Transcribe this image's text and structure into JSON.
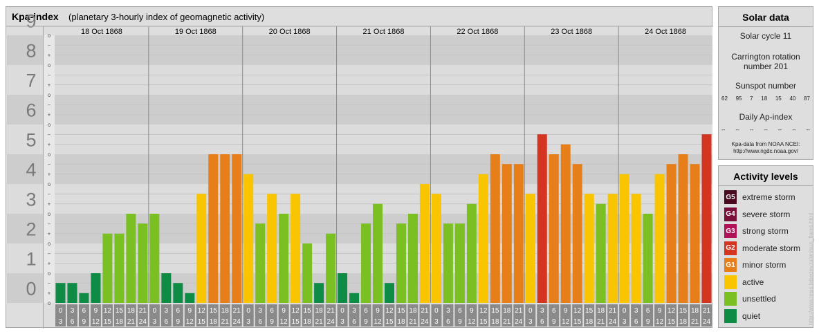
{
  "title": "Kpa-index",
  "subtitle": "(planetary 3-hourly index of geomagnetic activity)",
  "chart_data": {
    "type": "bar",
    "ylim": [
      0,
      9
    ],
    "y_ticks": [
      "0",
      "1",
      "2",
      "3",
      "4",
      "5",
      "6",
      "7",
      "8",
      "9"
    ],
    "minor_marks": [
      "o",
      "+",
      "−"
    ],
    "days": [
      "18 Oct 1868",
      "19 Oct 1868",
      "20 Oct 1868",
      "21 Oct 1868",
      "22 Oct 1868",
      "23 Oct 1868",
      "24 Oct 1868"
    ],
    "intervals": [
      [
        "0",
        "3"
      ],
      [
        "3",
        "6"
      ],
      [
        "6",
        "9"
      ],
      [
        "9",
        "12"
      ],
      [
        "12",
        "15"
      ],
      [
        "15",
        "18"
      ],
      [
        "18",
        "21"
      ],
      [
        "21",
        "24"
      ]
    ],
    "values": [
      [
        0.67,
        0.67,
        0.33,
        1.0,
        2.33,
        2.33,
        3.0,
        2.67
      ],
      [
        3.0,
        1.0,
        0.67,
        0.33,
        3.67,
        5.0,
        5.0,
        5.0
      ],
      [
        4.33,
        2.67,
        3.67,
        3.0,
        3.67,
        2.0,
        0.67,
        2.33
      ],
      [
        1.0,
        0.33,
        2.67,
        3.33,
        0.67,
        2.67,
        3.0,
        4.0
      ],
      [
        3.67,
        2.67,
        2.67,
        3.33,
        4.33,
        5.0,
        4.67,
        4.67
      ],
      [
        3.67,
        5.67,
        5.0,
        5.33,
        4.67,
        3.67,
        3.33,
        3.67
      ],
      [
        4.33,
        3.67,
        3.0,
        4.33,
        4.67,
        5.0,
        4.67,
        5.67
      ]
    ],
    "level_colors": {
      "quiet": "#0e8c45",
      "unsettled": "#7ac022",
      "active": "#f9c400",
      "minor": "#e67e1a",
      "moderate": "#d33520"
    },
    "grid": true
  },
  "solar": {
    "title": "Solar data",
    "cycle": "Solar cycle 11",
    "carrington_line1": "Carrington rotation",
    "carrington_line2": "number 201",
    "sunspot_label": "Sunspot number",
    "sunspot_values": [
      "62",
      "95",
      "7",
      "18",
      "15",
      "40",
      "87"
    ],
    "ap_label": "Daily Ap-index",
    "ap_values": [
      "--",
      "--",
      "--",
      "--",
      "--",
      "--",
      "--"
    ],
    "source_line1": "Kpa-data from NOAA NCEI:",
    "source_line2": "http://www.ngdc.noaa.gov/"
  },
  "levels": {
    "title": "Activity levels",
    "items": [
      {
        "code": "G5",
        "label": "extreme storm",
        "color": "#4a0a1e"
      },
      {
        "code": "G4",
        "label": "severe storm",
        "color": "#7a0f3a"
      },
      {
        "code": "G3",
        "label": "strong storm",
        "color": "#b0125a"
      },
      {
        "code": "G2",
        "label": "moderate storm",
        "color": "#d33520"
      },
      {
        "code": "G1",
        "label": "minor storm",
        "color": "#e67e1a"
      },
      {
        "code": "",
        "label": "active",
        "color": "#f9c400"
      },
      {
        "code": "",
        "label": "unsettled",
        "color": "#7ac022"
      },
      {
        "code": "",
        "label": "quiet",
        "color": "#0e8c45"
      }
    ]
  },
  "watermark": "http://www.tesis.lebedev.ru/en/sun_flares.html"
}
